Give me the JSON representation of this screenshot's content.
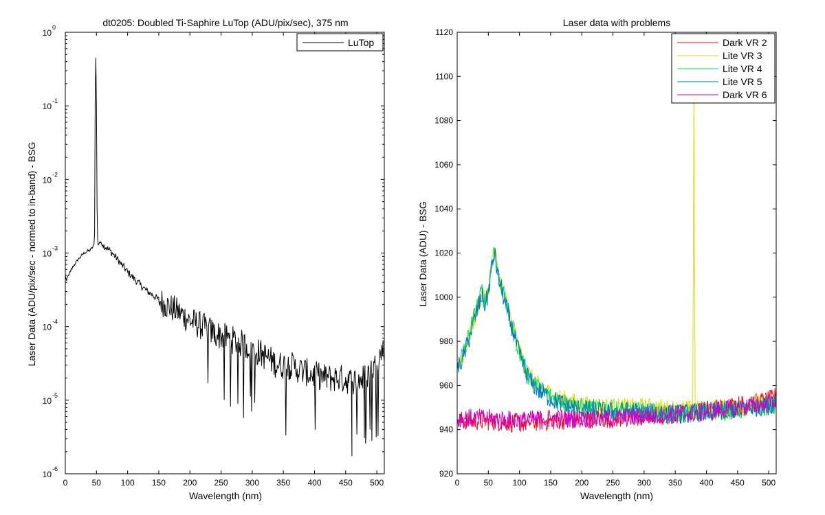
{
  "chart_data": [
    {
      "type": "line",
      "title": "dt0205: Doubled Ti-Saphire LuTop (ADU/pix/sec), 375 nm",
      "xlabel": "Wavelength (nm)",
      "ylabel": "Laser Data (ADU/pix/sec - normed to in-band) - BSG",
      "xlim": [
        0,
        512
      ],
      "ylim": [
        1e-06,
        1
      ],
      "yscale": "log",
      "x_ticks": [
        "0",
        "50",
        "100",
        "150",
        "200",
        "250",
        "300",
        "350",
        "400",
        "450",
        "500"
      ],
      "y_tick_base": "10",
      "y_tick_exponents": [
        "0",
        "-1",
        "-2",
        "-3",
        "-4",
        "-5",
        "-6"
      ],
      "grid": false,
      "legend_position": "top-right",
      "series": [
        {
          "name": "LuTop",
          "color": "#000000",
          "x": [
            0,
            2,
            5,
            8,
            10,
            12,
            15,
            20,
            25,
            30,
            35,
            40,
            44,
            46,
            47,
            48,
            49,
            50,
            51,
            52,
            53,
            55,
            60,
            65,
            70,
            80,
            90,
            100,
            110,
            120,
            130,
            140,
            150,
            160,
            170,
            180,
            190,
            200,
            220,
            240,
            260,
            280,
            300,
            320,
            340,
            360,
            380,
            400,
            420,
            440,
            460,
            480,
            500,
            510
          ],
          "y": [
            0.0005,
            0.00042,
            0.0005,
            0.00055,
            0.0006,
            0.00065,
            0.0007,
            0.0008,
            0.0009,
            0.001,
            0.00105,
            0.0011,
            0.0012,
            0.0013,
            0.002,
            0.15,
            0.45,
            0.1,
            0.004,
            0.0015,
            0.0013,
            0.0014,
            0.0013,
            0.0012,
            0.0011,
            0.0009,
            0.0007,
            0.00055,
            0.00045,
            0.00037,
            0.00031,
            0.00027,
            0.00023,
            0.0002,
            0.00018,
            0.00016,
            0.00014,
            0.00012,
            0.0001,
            8e-05,
            7e-05,
            6e-05,
            5e-05,
            4e-05,
            3e-05,
            3e-05,
            2.5e-05,
            2.2e-05,
            2e-05,
            2e-05,
            1.8e-05,
            2e-05,
            3e-05,
            5e-05
          ]
        }
      ]
    },
    {
      "type": "line",
      "title": "Laser data with problems",
      "xlabel": "Wavelength (nm)",
      "ylabel": "Laser Data (ADU) - BSG",
      "xlim": [
        0,
        512
      ],
      "ylim": [
        920,
        1120
      ],
      "x_ticks": [
        "0",
        "50",
        "100",
        "150",
        "200",
        "250",
        "300",
        "350",
        "400",
        "450",
        "500"
      ],
      "y_ticks": [
        "920",
        "940",
        "960",
        "980",
        "1000",
        "1020",
        "1040",
        "1060",
        "1080",
        "1100",
        "1120"
      ],
      "grid": false,
      "legend_position": "top-right",
      "series": [
        {
          "name": "Dark VR 2",
          "color": "#ff0000",
          "x": [
            0,
            50,
            100,
            150,
            200,
            250,
            300,
            350,
            400,
            450,
            500,
            512
          ],
          "y": [
            944,
            944,
            943,
            944,
            945,
            945,
            946,
            947,
            949,
            951,
            953,
            955
          ]
        },
        {
          "name": "Lite VR 3",
          "color": "#dddd00",
          "x": [
            0,
            10,
            20,
            30,
            40,
            45,
            50,
            55,
            60,
            65,
            70,
            80,
            90,
            100,
            110,
            120,
            130,
            140,
            150,
            175,
            200,
            250,
            300,
            350,
            378,
            380,
            382,
            385,
            400,
            450,
            500,
            512
          ],
          "y": [
            968,
            974,
            983,
            993,
            1002,
            998,
            1003,
            1015,
            1022,
            1012,
            1007,
            996,
            986,
            976,
            968,
            963,
            960,
            958,
            956,
            953,
            951,
            950,
            950,
            949,
            949,
            1100,
            949,
            949,
            949,
            950,
            952,
            953
          ]
        },
        {
          "name": "Lite VR 4",
          "color": "#00dd55",
          "x": [
            0,
            10,
            20,
            30,
            40,
            45,
            50,
            55,
            60,
            65,
            70,
            80,
            90,
            100,
            110,
            120,
            130,
            140,
            150,
            175,
            200,
            250,
            300,
            350,
            400,
            450,
            500,
            512
          ],
          "y": [
            969,
            975,
            984,
            994,
            1003,
            997,
            1003,
            1015,
            1022,
            1011,
            1006,
            995,
            985,
            975,
            967,
            962,
            959,
            957,
            955,
            952,
            950,
            949,
            948,
            947,
            948,
            949,
            951,
            952
          ]
        },
        {
          "name": "Lite VR 5",
          "color": "#0077cc",
          "x": [
            0,
            10,
            20,
            30,
            40,
            45,
            50,
            55,
            60,
            65,
            70,
            80,
            90,
            100,
            110,
            120,
            130,
            140,
            150,
            175,
            200,
            250,
            300,
            350,
            400,
            450,
            500,
            512
          ],
          "y": [
            967,
            973,
            982,
            992,
            1001,
            996,
            1002,
            1013,
            1020,
            1010,
            1005,
            994,
            984,
            974,
            966,
            961,
            958,
            956,
            954,
            951,
            949,
            948,
            948,
            947,
            948,
            949,
            951,
            952
          ]
        },
        {
          "name": "Dark VR 6",
          "color": "#cc00cc",
          "x": [
            0,
            50,
            100,
            150,
            200,
            250,
            300,
            350,
            400,
            450,
            500,
            512
          ],
          "y": [
            945,
            945,
            944,
            945,
            945,
            945,
            946,
            947,
            948,
            950,
            952,
            954
          ]
        }
      ]
    }
  ]
}
